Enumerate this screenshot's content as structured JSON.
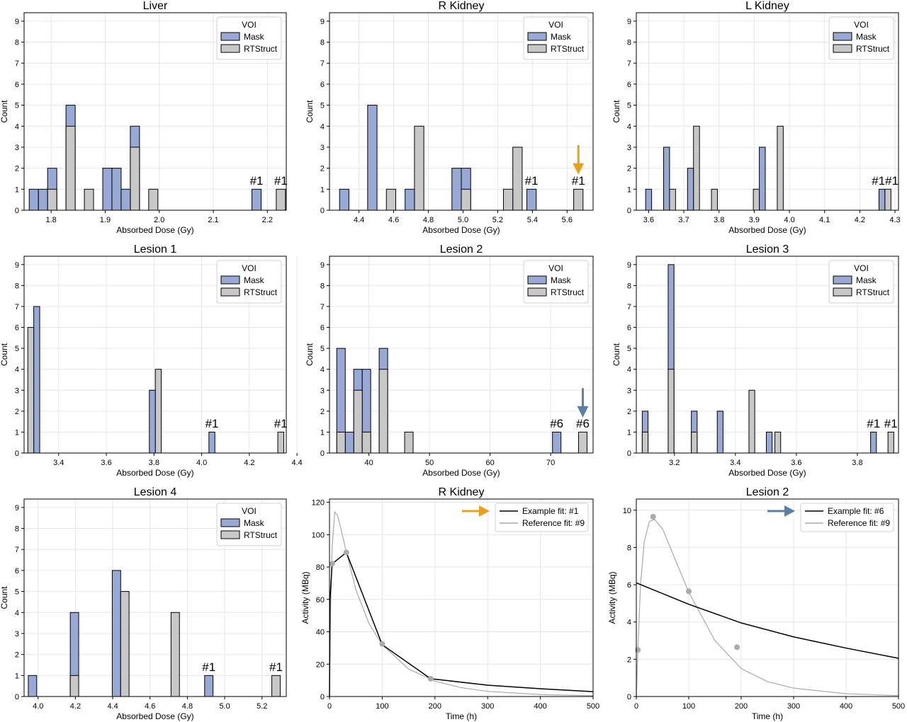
{
  "legend": {
    "title": "VOI",
    "mask": "Mask",
    "rtstruct": "RTStruct"
  },
  "axis_labels": {
    "count": "Count",
    "dose": "Absorbed Dose (Gy)",
    "time": "Time (h)",
    "activity": "Activity (MBq)"
  },
  "colors": {
    "mask": "#97a9d4",
    "rtstruct": "#c8c8c8",
    "orange_arrow": "#e6a21f",
    "blue_arrow": "#5b7fa6",
    "example_fit": "#000000",
    "reference_fit": "#a9a9a9"
  },
  "chart_data": [
    {
      "type": "bar",
      "title": "Liver",
      "xlim": [
        1.75,
        2.235
      ],
      "ylim": [
        0,
        9.4
      ],
      "xticks": [
        1.8,
        1.9,
        2.0,
        2.1,
        2.2
      ],
      "xtick_labels": [
        "1.8",
        "1.9",
        "2.0",
        "2.1",
        "2.2"
      ],
      "yticks": [
        0,
        1,
        2,
        3,
        4,
        5,
        6,
        7,
        8,
        9
      ],
      "bin_width": 0.017,
      "mask_bins": [
        [
          1.768,
          1
        ],
        [
          1.785,
          1
        ],
        [
          1.802,
          2
        ],
        [
          1.836,
          5
        ],
        [
          1.904,
          2
        ],
        [
          1.921,
          2
        ],
        [
          1.938,
          1
        ],
        [
          1.955,
          4
        ],
        [
          2.18,
          1
        ]
      ],
      "rtstruct_bins": [
        [
          1.802,
          1
        ],
        [
          1.836,
          4
        ],
        [
          1.87,
          1
        ],
        [
          1.955,
          3
        ],
        [
          1.989,
          1
        ],
        [
          2.225,
          1
        ]
      ],
      "annotations": [
        {
          "text": "#1",
          "x": 2.18,
          "y": 1.15
        },
        {
          "text": "#1",
          "x": 2.225,
          "y": 1.15
        }
      ],
      "legend_position": "top-right"
    },
    {
      "type": "bar",
      "title": "R Kidney",
      "xlim": [
        4.23,
        5.75
      ],
      "ylim": [
        0,
        9.4
      ],
      "xticks": [
        4.4,
        4.6,
        4.8,
        5.0,
        5.2,
        5.4,
        5.6
      ],
      "xtick_labels": [
        "4.4",
        "4.6",
        "4.8",
        "5.0",
        "5.2",
        "5.4",
        "5.6"
      ],
      "yticks": [
        0,
        1,
        2,
        3,
        4,
        5,
        6,
        7,
        8,
        9
      ],
      "bin_width": 0.054,
      "mask_bins": [
        [
          4.315,
          1
        ],
        [
          4.477,
          5
        ],
        [
          4.693,
          1
        ],
        [
          4.963,
          2
        ],
        [
          5.017,
          2
        ],
        [
          5.395,
          1
        ]
      ],
      "rtstruct_bins": [
        [
          4.585,
          1
        ],
        [
          4.747,
          4
        ],
        [
          5.017,
          1
        ],
        [
          5.26,
          1
        ],
        [
          5.314,
          3
        ],
        [
          5.665,
          1
        ]
      ],
      "annotations": [
        {
          "text": "#1",
          "x": 5.395,
          "y": 1.15
        },
        {
          "text": "#1",
          "x": 5.665,
          "y": 1.15
        }
      ],
      "arrow": {
        "color": "orange",
        "direction": "down",
        "x": 5.665,
        "y_from": 3.1,
        "y_to": 1.9
      },
      "legend_position": "top-right"
    },
    {
      "type": "bar",
      "title": "L Kidney",
      "xlim": [
        3.565,
        4.31
      ],
      "ylim": [
        0,
        9.4
      ],
      "xticks": [
        3.6,
        3.7,
        3.8,
        3.9,
        4.0,
        4.1,
        4.2,
        4.3
      ],
      "xtick_labels": [
        "3.6",
        "3.7",
        "3.8",
        "3.9",
        "4.0",
        "4.1",
        "4.2",
        "4.3"
      ],
      "yticks": [
        0,
        1,
        2,
        3,
        4,
        5,
        6,
        7,
        8,
        9
      ],
      "bin_width": 0.017,
      "mask_bins": [
        [
          3.6,
          1
        ],
        [
          3.651,
          3
        ],
        [
          3.719,
          2
        ],
        [
          3.923,
          3
        ],
        [
          4.263,
          1
        ]
      ],
      "rtstruct_bins": [
        [
          3.668,
          1
        ],
        [
          3.736,
          4
        ],
        [
          3.787,
          1
        ],
        [
          3.906,
          1
        ],
        [
          3.974,
          4
        ],
        [
          4.28,
          1
        ]
      ],
      "annotations": [
        {
          "text": "#1#1",
          "x": 4.272,
          "y": 1.15
        }
      ],
      "legend_position": "top-right"
    },
    {
      "type": "bar",
      "title": "Lesion 1",
      "xlim": [
        3.255,
        4.355
      ],
      "ylim": [
        0,
        9.4
      ],
      "xticks": [
        3.4,
        3.6,
        3.8,
        4.0,
        4.2,
        4.4
      ],
      "xtick_labels": [
        "3.4",
        "3.6",
        "3.8",
        "4.0",
        "4.2",
        "4.4"
      ],
      "yticks": [
        0,
        1,
        2,
        3,
        4,
        5,
        6,
        7,
        8,
        9
      ],
      "bin_width": 0.025,
      "mask_bins": [
        [
          3.308,
          7
        ],
        [
          3.793,
          3
        ],
        [
          4.043,
          1
        ]
      ],
      "rtstruct_bins": [
        [
          3.283,
          6
        ],
        [
          3.818,
          4
        ],
        [
          4.332,
          1
        ]
      ],
      "annotations": [
        {
          "text": "#1",
          "x": 4.043,
          "y": 1.15
        },
        {
          "text": "#1",
          "x": 4.332,
          "y": 1.15
        }
      ],
      "legend_position": "top-right"
    },
    {
      "type": "bar",
      "title": "Lesion 2",
      "xlim": [
        33.5,
        77.0
      ],
      "ylim": [
        0,
        9.4
      ],
      "xticks": [
        40,
        50,
        60,
        70
      ],
      "xtick_labels": [
        "40",
        "50",
        "60",
        "70"
      ],
      "yticks": [
        0,
        1,
        2,
        3,
        4,
        5,
        6,
        7,
        8,
        9
      ],
      "bin_width": 1.4,
      "mask_bins": [
        [
          35.4,
          5
        ],
        [
          36.8,
          1
        ],
        [
          38.2,
          4
        ],
        [
          39.6,
          4
        ],
        [
          42.4,
          5
        ],
        [
          71.0,
          1
        ]
      ],
      "rtstruct_bins": [
        [
          35.4,
          1
        ],
        [
          38.2,
          3
        ],
        [
          39.6,
          1
        ],
        [
          42.4,
          4
        ],
        [
          46.6,
          1
        ],
        [
          75.3,
          1
        ]
      ],
      "annotations": [
        {
          "text": "#6",
          "x": 71.0,
          "y": 1.15
        },
        {
          "text": "#6",
          "x": 75.3,
          "y": 1.15
        }
      ],
      "arrow": {
        "color": "blue",
        "direction": "down",
        "x": 75.3,
        "y_from": 3.1,
        "y_to": 1.9
      },
      "legend_position": "top-right"
    },
    {
      "type": "bar",
      "title": "Lesion 3",
      "xlim": [
        3.075,
        3.935
      ],
      "ylim": [
        0,
        9.4
      ],
      "xticks": [
        3.2,
        3.4,
        3.6,
        3.8
      ],
      "xtick_labels": [
        "3.2",
        "3.4",
        "3.6",
        "3.8"
      ],
      "yticks": [
        0,
        1,
        2,
        3,
        4,
        5,
        6,
        7,
        8,
        9
      ],
      "bin_width": 0.019,
      "mask_bins": [
        [
          3.104,
          2
        ],
        [
          3.189,
          9
        ],
        [
          3.265,
          2
        ],
        [
          3.35,
          2
        ],
        [
          3.511,
          1
        ],
        [
          3.853,
          1
        ]
      ],
      "rtstruct_bins": [
        [
          3.104,
          1
        ],
        [
          3.189,
          4
        ],
        [
          3.265,
          1
        ],
        [
          3.454,
          3
        ],
        [
          3.539,
          1
        ],
        [
          3.91,
          1
        ]
      ],
      "annotations": [
        {
          "text": "#1",
          "x": 3.853,
          "y": 1.15
        },
        {
          "text": "#1",
          "x": 3.91,
          "y": 1.15
        }
      ],
      "legend_position": "top-right"
    },
    {
      "type": "bar",
      "title": "Lesion 4",
      "xlim": [
        3.925,
        5.33
      ],
      "ylim": [
        0,
        9.4
      ],
      "xticks": [
        4.0,
        4.2,
        4.4,
        4.6,
        4.8,
        5.0,
        5.2
      ],
      "xtick_labels": [
        "4.0",
        "4.2",
        "4.4",
        "4.6",
        "4.8",
        "5.0",
        "5.2"
      ],
      "yticks": [
        0,
        1,
        2,
        3,
        4,
        5,
        6,
        7,
        8,
        9
      ],
      "bin_width": 0.045,
      "mask_bins": [
        [
          3.97,
          1
        ],
        [
          4.195,
          4
        ],
        [
          4.42,
          6
        ],
        [
          4.915,
          1
        ]
      ],
      "rtstruct_bins": [
        [
          4.195,
          1
        ],
        [
          4.465,
          5
        ],
        [
          4.735,
          4
        ],
        [
          5.275,
          1
        ]
      ],
      "annotations": [
        {
          "text": "#1",
          "x": 4.915,
          "y": 1.15
        },
        {
          "text": "#1",
          "x": 5.275,
          "y": 1.15
        }
      ],
      "legend_position": "top-right"
    },
    {
      "type": "line",
      "title": "R Kidney",
      "xlim": [
        0,
        500
      ],
      "ylim": [
        0,
        122
      ],
      "xticks": [
        0,
        100,
        200,
        300,
        400,
        500
      ],
      "xtick_labels": [
        "0",
        "100",
        "200",
        "300",
        "400",
        "500"
      ],
      "yticks": [
        0,
        20,
        40,
        60,
        80,
        100,
        120
      ],
      "series": [
        {
          "name": "Example fit: #1",
          "x": [
            0,
            1,
            5,
            32,
            100,
            192,
            300,
            400,
            500
          ],
          "y": [
            0,
            60,
            82,
            89,
            32,
            11,
            7.0,
            4.8,
            3.0
          ]
        },
        {
          "name": "Reference fit: #9",
          "x": [
            0,
            2,
            5,
            10,
            15,
            20,
            30,
            50,
            75,
            100,
            150,
            200,
            250,
            300,
            400,
            500
          ],
          "y": [
            0,
            52,
            92,
            114,
            112,
            106,
            92,
            66,
            45,
            32,
            17,
            9.5,
            5.5,
            3.2,
            1.2,
            0.5
          ]
        }
      ],
      "points": {
        "x": [
          5,
          32,
          100,
          192
        ],
        "y": [
          82,
          89,
          32.5,
          11
        ]
      },
      "arrow": {
        "color": "orange",
        "direction": "right"
      },
      "legend_position": "top-right"
    },
    {
      "type": "line",
      "title": "Lesion 2",
      "xlim": [
        0,
        500
      ],
      "ylim": [
        0,
        10.6
      ],
      "xticks": [
        0,
        100,
        200,
        300,
        400,
        500
      ],
      "xtick_labels": [
        "0",
        "100",
        "200",
        "300",
        "400",
        "500"
      ],
      "yticks": [
        0,
        2,
        4,
        6,
        8,
        10
      ],
      "series": [
        {
          "name": "Example fit: #6",
          "x": [
            0,
            100,
            200,
            300,
            400,
            500
          ],
          "y": [
            6.1,
            4.95,
            3.95,
            3.2,
            2.6,
            2.05
          ]
        },
        {
          "name": "Reference fit: #9",
          "x": [
            0,
            3,
            8,
            15,
            25,
            35,
            50,
            75,
            100,
            150,
            200,
            250,
            300,
            400,
            500
          ],
          "y": [
            0,
            2.5,
            6.0,
            8.3,
            9.4,
            9.5,
            9.0,
            7.3,
            5.6,
            3.0,
            1.5,
            0.8,
            0.45,
            0.15,
            0.05
          ]
        }
      ],
      "points": {
        "x": [
          3,
          32,
          100,
          192
        ],
        "y": [
          2.5,
          9.65,
          5.65,
          2.65
        ]
      },
      "arrow": {
        "color": "blue",
        "direction": "right"
      },
      "legend_position": "top-right"
    }
  ]
}
